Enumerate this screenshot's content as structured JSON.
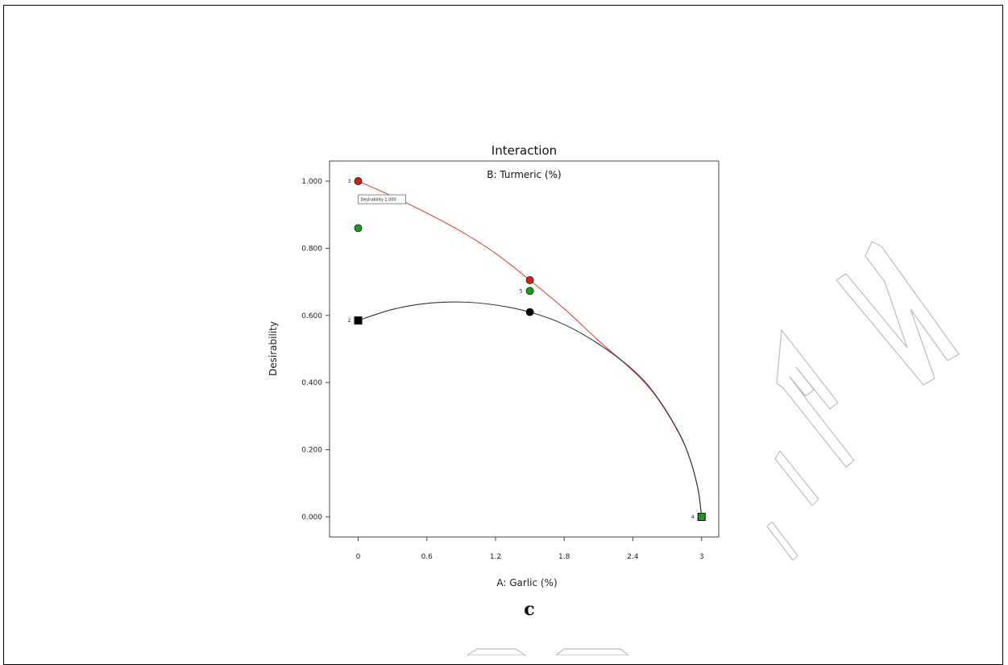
{
  "panel_letter": "c",
  "watermark": "PREVIEW",
  "colors": {
    "series_high": "#e0463f",
    "series_low": "#333333",
    "marker_red": "#cc1f1f",
    "marker_green": "#1e9a1e",
    "marker_black": "#000000",
    "watermark": "#bdbdbd"
  },
  "chart_data": {
    "type": "line",
    "title": "Interaction",
    "factor_label": "B: Turmeric (%)",
    "xlabel": "A: Garlic (%)",
    "ylabel": "Desirability",
    "xlim": [
      -0.25,
      3.15
    ],
    "ylim": [
      -0.06,
      1.06
    ],
    "x_ticks": [
      0,
      0.6,
      1.2,
      1.8,
      2.4,
      3
    ],
    "x_tick_labels": [
      "0",
      "0.6",
      "1.2",
      "1.8",
      "2.4",
      "3"
    ],
    "y_ticks": [
      0,
      0.2,
      0.4,
      0.6,
      0.8,
      1.0
    ],
    "y_tick_labels": [
      "0.000",
      "0.200",
      "0.400",
      "0.600",
      "0.800",
      "1.000"
    ],
    "series": [
      {
        "key": "high",
        "color": "#e0463f",
        "x": [
          0,
          0.3,
          0.6,
          0.9,
          1.2,
          1.5,
          1.8,
          2.1,
          2.4,
          2.6,
          2.8,
          2.9,
          2.97,
          3.0
        ],
        "y": [
          1.0,
          0.955,
          0.905,
          0.85,
          0.785,
          0.705,
          0.62,
          0.525,
          0.435,
          0.36,
          0.25,
          0.17,
          0.08,
          0.0
        ]
      },
      {
        "key": "low",
        "color": "#333333",
        "x": [
          0,
          0.3,
          0.6,
          0.9,
          1.2,
          1.5,
          1.8,
          2.1,
          2.4,
          2.6,
          2.8,
          2.9,
          2.97,
          3.0
        ],
        "y": [
          0.585,
          0.618,
          0.636,
          0.64,
          0.631,
          0.61,
          0.573,
          0.515,
          0.438,
          0.362,
          0.252,
          0.171,
          0.081,
          0.0
        ]
      }
    ],
    "points": [
      {
        "x": 0,
        "y": 1.0,
        "shape": "circle",
        "color": "#cc1f1f",
        "label": "3"
      },
      {
        "x": 0,
        "y": 0.86,
        "shape": "circle",
        "color": "#1e9a1e",
        "label": ""
      },
      {
        "x": 0,
        "y": 0.585,
        "shape": "square",
        "color": "#000000",
        "label": "2"
      },
      {
        "x": 1.5,
        "y": 0.705,
        "shape": "circle",
        "color": "#cc1f1f",
        "label": ""
      },
      {
        "x": 1.5,
        "y": 0.673,
        "shape": "circle",
        "color": "#1e9a1e",
        "label": "5"
      },
      {
        "x": 1.5,
        "y": 0.61,
        "shape": "circle",
        "color": "#000000",
        "label": ""
      },
      {
        "x": 3,
        "y": 0.0,
        "shape": "square",
        "color": "#1e9a1e",
        "label": "4"
      }
    ],
    "annotation": {
      "text": "Desirability  1.000",
      "x": 0,
      "y": 1.0
    }
  }
}
